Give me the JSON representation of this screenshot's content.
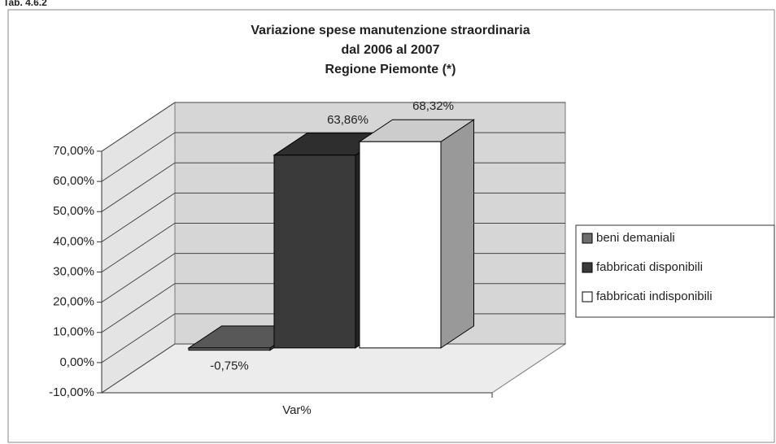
{
  "caption": "Tab. 4.6.2",
  "chart_data": {
    "type": "bar3d",
    "title": [
      "Variazione spese manutenzione straordinaria",
      "dal 2006 al 2007",
      "Regione Piemonte (*)"
    ],
    "categories": [
      "Var%"
    ],
    "series": [
      {
        "name": "beni demaniali",
        "color": "#6e6e6e",
        "values": [
          -0.75
        ],
        "value_labels": [
          "-0,75%"
        ]
      },
      {
        "name": "fabbricati disponibili",
        "color": "#3a3a3a",
        "values": [
          63.86
        ],
        "value_labels": [
          "63,86%"
        ]
      },
      {
        "name": "fabbricati indisponibili",
        "color": "#ffffff",
        "values": [
          68.32
        ],
        "value_labels": [
          "68,32%"
        ]
      }
    ],
    "ylim": [
      -10,
      70
    ],
    "yticks": [
      {
        "value": -10,
        "label": "-10,00%"
      },
      {
        "value": 0,
        "label": "0,00%"
      },
      {
        "value": 10,
        "label": "10,00%"
      },
      {
        "value": 20,
        "label": "20,00%"
      },
      {
        "value": 30,
        "label": "30,00%"
      },
      {
        "value": 40,
        "label": "40,00%"
      },
      {
        "value": 50,
        "label": "50,00%"
      },
      {
        "value": 60,
        "label": "60,00%"
      },
      {
        "value": 70,
        "label": "70,00%"
      }
    ],
    "grid": true,
    "legend": "right"
  }
}
